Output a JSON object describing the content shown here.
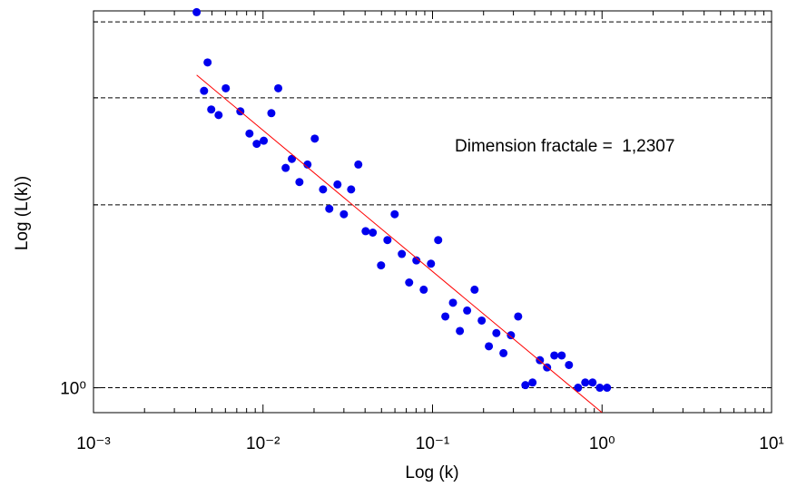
{
  "chart_data": {
    "type": "scatter",
    "xlabel": "Log (k)",
    "ylabel": "Log (L(k))",
    "annotation": "Dimension fractale =  1,2307",
    "log_x": true,
    "log_y": true,
    "grid": true,
    "xlim": [
      0.001,
      10
    ],
    "ylim": [
      0.91,
      4.17
    ],
    "xticks": [
      {
        "value": 0.001,
        "label": "10⁻³"
      },
      {
        "value": 0.01,
        "label": "10⁻²"
      },
      {
        "value": 0.1,
        "label": "10⁻¹"
      },
      {
        "value": 1,
        "label": "10⁰"
      },
      {
        "value": 10,
        "label": "10¹"
      }
    ],
    "yticks": [
      {
        "value": 1,
        "label": "10⁰"
      }
    ],
    "ygrid": [
      1,
      2,
      3,
      4
    ],
    "series": [
      {
        "name": "points",
        "color": "#0000ee",
        "x": [
          0.00406,
          0.00449,
          0.00471,
          0.00495,
          0.00547,
          0.00603,
          0.00735,
          0.00832,
          0.00918,
          0.0101,
          0.0112,
          0.0123,
          0.0136,
          0.0148,
          0.0164,
          0.0183,
          0.0202,
          0.0226,
          0.0246,
          0.0275,
          0.03,
          0.0331,
          0.0365,
          0.0403,
          0.0444,
          0.0497,
          0.0542,
          0.0598,
          0.0659,
          0.0728,
          0.0803,
          0.0887,
          0.0979,
          0.108,
          0.119,
          0.132,
          0.145,
          0.16,
          0.177,
          0.195,
          0.215,
          0.238,
          0.262,
          0.29,
          0.32,
          0.353,
          0.389,
          0.43,
          0.474,
          0.523,
          0.578,
          0.638,
          0.722,
          0.796,
          0.879,
          0.97,
          1.07
        ],
        "values": [
          4.15,
          3.08,
          3.43,
          2.87,
          2.81,
          3.11,
          2.85,
          2.62,
          2.52,
          2.55,
          2.83,
          3.11,
          2.3,
          2.38,
          2.18,
          2.33,
          2.57,
          2.12,
          1.97,
          2.16,
          1.93,
          2.12,
          2.33,
          1.81,
          1.8,
          1.59,
          1.75,
          1.93,
          1.66,
          1.49,
          1.62,
          1.45,
          1.6,
          1.75,
          1.31,
          1.38,
          1.24,
          1.34,
          1.45,
          1.29,
          1.17,
          1.23,
          1.14,
          1.22,
          1.31,
          1.01,
          1.02,
          1.11,
          1.08,
          1.13,
          1.13,
          1.09,
          1.0,
          1.02,
          1.02,
          1.0,
          1.0
        ]
      },
      {
        "name": "fit",
        "color": "#ff0000",
        "x": [
          0.00406,
          1.0
        ],
        "values": [
          3.27,
          0.91
        ]
      }
    ]
  }
}
